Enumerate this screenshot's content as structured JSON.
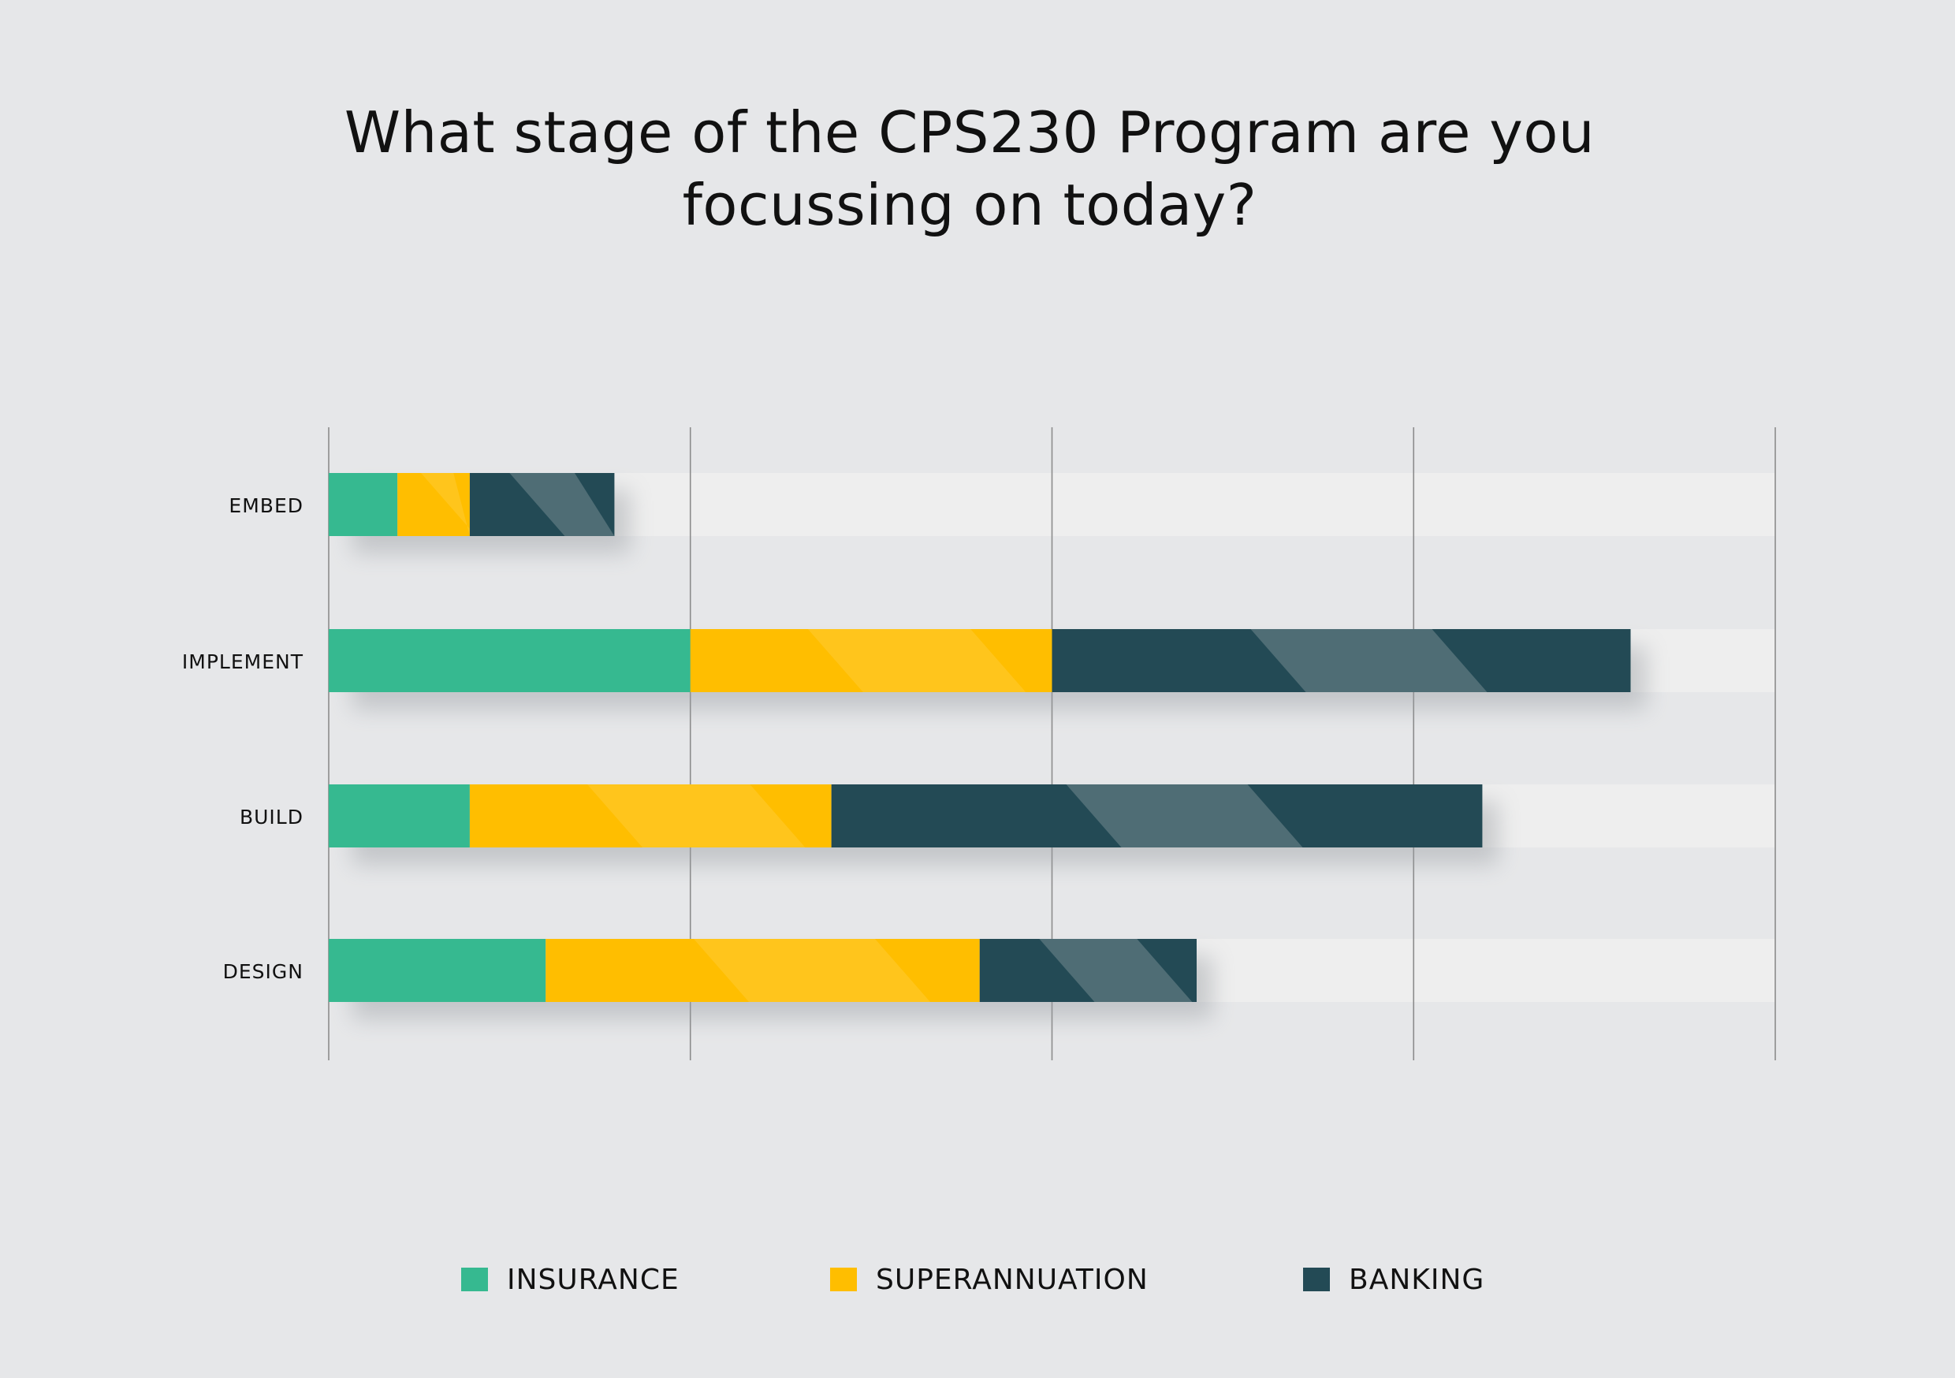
{
  "title_lines": [
    "What stage of the CPS230 Program are you",
    "focussing on today?"
  ],
  "colors": {
    "background": "#e6e7e9",
    "track": "#eeeeee",
    "grid": "#8c8c8c",
    "insurance": "#36b990",
    "superannuation": "#ffbe00",
    "banking": "#234a55",
    "banking_light": "#4f6d75",
    "superannuation_light": "#ffcb33"
  },
  "chart_data": {
    "type": "bar",
    "orientation": "horizontal",
    "stacked": true,
    "title": "What stage of the CPS230 Program are you focussing on today?",
    "categories": [
      "EMBED",
      "IMPLEMENT",
      "BUILD",
      "DESIGN"
    ],
    "series": [
      {
        "name": "INSURANCE",
        "color": "#36b990",
        "values": [
          0.19,
          1.0,
          0.39,
          0.6
        ]
      },
      {
        "name": "SUPERANNUATION",
        "color": "#ffbe00",
        "values": [
          0.2,
          1.0,
          1.0,
          1.2
        ]
      },
      {
        "name": "BANKING",
        "color": "#234a55",
        "values": [
          0.4,
          1.6,
          1.8,
          0.6
        ]
      }
    ],
    "xlim": [
      0,
      4
    ],
    "grid": true,
    "legend_position": "bottom"
  },
  "legend": [
    {
      "label": "INSURANCE",
      "color": "#36b990"
    },
    {
      "label": "SUPERANNUATION",
      "color": "#ffbe00"
    },
    {
      "label": "BANKING",
      "color": "#234a55"
    }
  ]
}
